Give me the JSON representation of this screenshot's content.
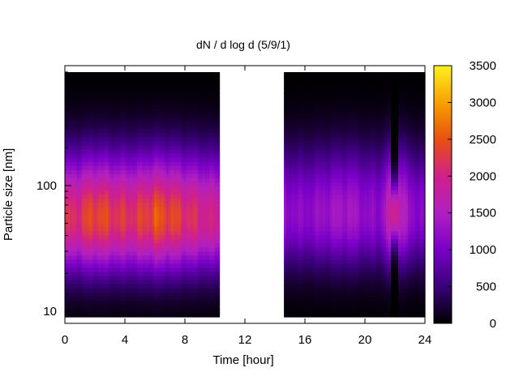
{
  "chart_data": {
    "type": "heatmap",
    "title": "dN / d log d (5/9/1)",
    "xlabel": "Time [hour]",
    "ylabel": "Particle size [nm]",
    "xlim": [
      0,
      24
    ],
    "ylim_nm": [
      8,
      900
    ],
    "y_scale": "log",
    "x_ticks": [
      "0",
      "4",
      "8",
      "12",
      "16",
      "20",
      "24"
    ],
    "y_ticks": [
      "10",
      "100"
    ],
    "colorbar": {
      "range": [
        0,
        3500
      ],
      "ticks": [
        "0",
        "500",
        "1000",
        "1500",
        "2000",
        "2500",
        "3000",
        "3500"
      ],
      "colors": [
        "#000000",
        "#3a007a",
        "#7a00c8",
        "#b020c0",
        "#d0208a",
        "#e85010",
        "#f7a000",
        "#fff020"
      ]
    },
    "segments": [
      {
        "x_start": 0,
        "x_end": 10.3,
        "peak_diameter_nm": 55,
        "peak_value": 2350,
        "profile": [
          {
            "hour": 0,
            "peak": 2100
          },
          {
            "hour": 1,
            "peak": 2200
          },
          {
            "hour": 2,
            "peak": 2450
          },
          {
            "hour": 3,
            "peak": 2300
          },
          {
            "hour": 4,
            "peak": 2200
          },
          {
            "hour": 5,
            "peak": 2250
          },
          {
            "hour": 6,
            "peak": 2500
          },
          {
            "hour": 7,
            "peak": 2400
          },
          {
            "hour": 8,
            "peak": 2200
          },
          {
            "hour": 9,
            "peak": 2050
          },
          {
            "hour": 10,
            "peak": 1900
          }
        ]
      },
      {
        "x_start": 14.6,
        "x_end": 24,
        "peak_diameter_nm": 60,
        "peak_value": 1300,
        "profile": [
          {
            "hour": 14.6,
            "peak": 1200
          },
          {
            "hour": 16,
            "peak": 1150
          },
          {
            "hour": 17,
            "peak": 1250
          },
          {
            "hour": 18,
            "peak": 1350
          },
          {
            "hour": 19,
            "peak": 1400
          },
          {
            "hour": 20,
            "peak": 1200
          },
          {
            "hour": 21,
            "peak": 1150
          },
          {
            "hour": 22,
            "peak": 2050
          },
          {
            "hour": 23,
            "peak": 1200
          },
          {
            "hour": 24,
            "peak": 1100
          }
        ]
      }
    ]
  }
}
